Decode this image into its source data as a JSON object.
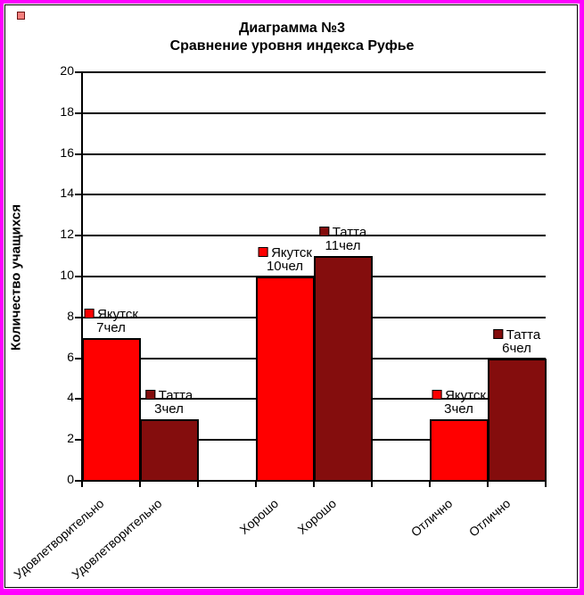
{
  "page": {
    "outer_border_color": "#FF00FF",
    "inner_frame_color": "#000000",
    "background": "#FFFFFF",
    "corner_marker": {
      "fill": "#F4807E",
      "border": "#6B1010"
    }
  },
  "chart_data": {
    "type": "bar",
    "title_lines": [
      "Диаграмма №3",
      "Сравнение уровня индекса Руфье"
    ],
    "ylabel": "Количество учащихся",
    "ylim": [
      0,
      20
    ],
    "ytick_step": 2,
    "grid": true,
    "categories": [
      "Удовлетворительно",
      "Хорошо",
      "Отлично"
    ],
    "value_suffix": "чел",
    "series": [
      {
        "name": "Якутск",
        "color": "#FF0000",
        "values": [
          7,
          10,
          3
        ]
      },
      {
        "name": "Татта",
        "color": "#840D0D",
        "values": [
          3,
          11,
          6
        ]
      }
    ],
    "data_labels": [
      "Якутск 7чел",
      "Татта 3чел",
      "Якутск 10чел",
      "Татта 11чел",
      "Якутск 3чел",
      "Татта 6чел"
    ]
  }
}
